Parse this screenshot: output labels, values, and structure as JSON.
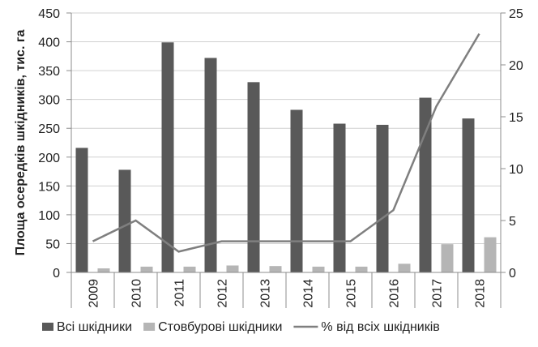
{
  "chart_data": {
    "type": "bar",
    "categories": [
      "2009",
      "2010",
      "2011",
      "2012",
      "2013",
      "2014",
      "2015",
      "2016",
      "2017",
      "2018"
    ],
    "series": [
      {
        "name": "Всі шкідники",
        "type": "bar",
        "axis": "left",
        "color": "#595959",
        "values": [
          216,
          178,
          399,
          372,
          330,
          282,
          258,
          256,
          303,
          267
        ]
      },
      {
        "name": "Стовбурові шкідники",
        "type": "bar",
        "axis": "left",
        "color": "#b5b5b5",
        "values": [
          7,
          10,
          10,
          12,
          11,
          10,
          10,
          15,
          49,
          61
        ]
      },
      {
        "name": "% від всіх шкідників",
        "type": "line",
        "axis": "right",
        "color": "#7f7f7f",
        "values": [
          3,
          5,
          2,
          3,
          3,
          3,
          3,
          6,
          16,
          23
        ]
      }
    ],
    "ylabel": "Площа осередків шкідників, тис. га",
    "ylim": [
      0,
      450
    ],
    "yticks": [
      0,
      50,
      100,
      150,
      200,
      250,
      300,
      350,
      400,
      450
    ],
    "y2lim": [
      0,
      25
    ],
    "y2ticks": [
      0,
      5,
      10,
      15,
      20,
      25
    ],
    "grid": true,
    "legend_position": "bottom"
  }
}
